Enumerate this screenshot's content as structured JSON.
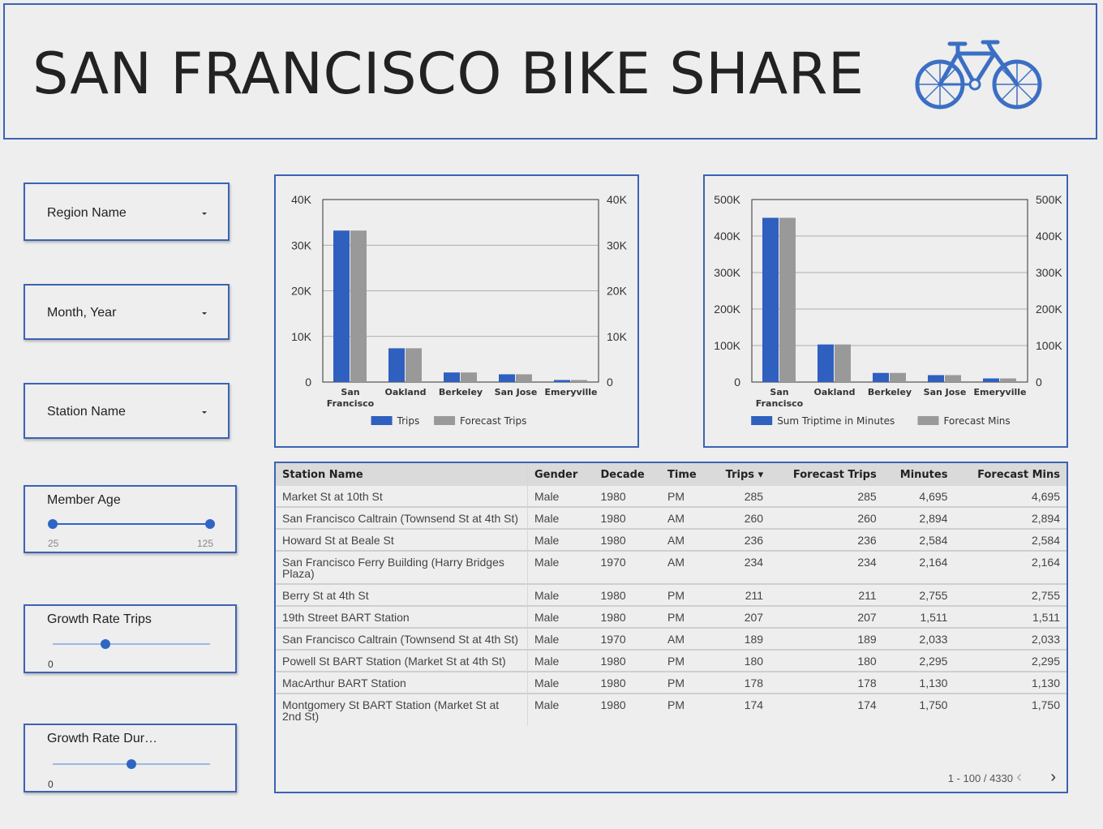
{
  "header": {
    "title": "SAN FRANCISCO BIKE SHARE",
    "icon": "bicycle-icon"
  },
  "accent_color": "#2f66c4",
  "filters": {
    "region": {
      "label": "Region Name"
    },
    "month_year": {
      "label": "Month, Year"
    },
    "station": {
      "label": "Station Name"
    }
  },
  "sliders": {
    "member_age": {
      "label": "Member Age",
      "min_label": "25",
      "max_label": "125"
    },
    "growth_trips": {
      "label": "Growth Rate Trips",
      "value_label": "0"
    },
    "growth_duration": {
      "label": "Growth Rate Dur…",
      "value_label": "0"
    }
  },
  "chart_data": [
    {
      "type": "bar",
      "categories": [
        "San Francisco",
        "Oakland",
        "Berkeley",
        "San Jose",
        "Emeryville"
      ],
      "series": [
        {
          "name": "Trips",
          "values": [
            33200,
            7400,
            2100,
            1700,
            450
          ],
          "color": "#2f5fbf"
        },
        {
          "name": "Forecast Trips",
          "values": [
            33200,
            7400,
            2100,
            1700,
            450
          ],
          "color": "#999999"
        }
      ],
      "ylim": [
        0,
        40000
      ],
      "y_ticks": [
        "0",
        "10K",
        "20K",
        "30K",
        "40K"
      ],
      "legend": "bottom",
      "grid": true
    },
    {
      "type": "bar",
      "categories": [
        "San Francisco",
        "Oakland",
        "Berkeley",
        "San Jose",
        "Emeryville"
      ],
      "series": [
        {
          "name": "Sum Triptime in Minutes",
          "values": [
            450000,
            103000,
            25000,
            19000,
            10000
          ],
          "color": "#2f5fbf"
        },
        {
          "name": "Forecast Mins",
          "values": [
            450000,
            103000,
            25000,
            19000,
            10000
          ],
          "color": "#999999"
        }
      ],
      "ylim": [
        0,
        500000
      ],
      "y_ticks": [
        "0",
        "100K",
        "200K",
        "300K",
        "400K",
        "500K"
      ],
      "legend": "bottom",
      "grid": true
    }
  ],
  "table": {
    "columns": [
      "Station Name",
      "Gender",
      "Decade",
      "Time",
      "Trips",
      "Forecast Trips",
      "Minutes",
      "Forecast Mins"
    ],
    "sort_indicator": "▾",
    "rows": [
      [
        "Market St at 10th St",
        "Male",
        "1980",
        "PM",
        "285",
        "285",
        "4,695",
        "4,695"
      ],
      [
        "San Francisco Caltrain (Townsend St at 4th St)",
        "Male",
        "1980",
        "AM",
        "260",
        "260",
        "2,894",
        "2,894"
      ],
      [
        "Howard St at Beale St",
        "Male",
        "1980",
        "AM",
        "236",
        "236",
        "2,584",
        "2,584"
      ],
      [
        "San Francisco Ferry Building (Harry Bridges Plaza)",
        "Male",
        "1970",
        "AM",
        "234",
        "234",
        "2,164",
        "2,164"
      ],
      [
        "Berry St at 4th St",
        "Male",
        "1980",
        "PM",
        "211",
        "211",
        "2,755",
        "2,755"
      ],
      [
        "19th Street BART Station",
        "Male",
        "1980",
        "PM",
        "207",
        "207",
        "1,511",
        "1,511"
      ],
      [
        "San Francisco Caltrain (Townsend St at 4th St)",
        "Male",
        "1970",
        "AM",
        "189",
        "189",
        "2,033",
        "2,033"
      ],
      [
        "Powell St BART Station (Market St at 4th St)",
        "Male",
        "1980",
        "PM",
        "180",
        "180",
        "2,295",
        "2,295"
      ],
      [
        "MacArthur BART Station",
        "Male",
        "1980",
        "PM",
        "178",
        "178",
        "1,130",
        "1,130"
      ],
      [
        "Montgomery St BART Station (Market St at 2nd St)",
        "Male",
        "1980",
        "PM",
        "174",
        "174",
        "1,750",
        "1,750"
      ]
    ],
    "pagination": "1 - 100 / 4330"
  }
}
